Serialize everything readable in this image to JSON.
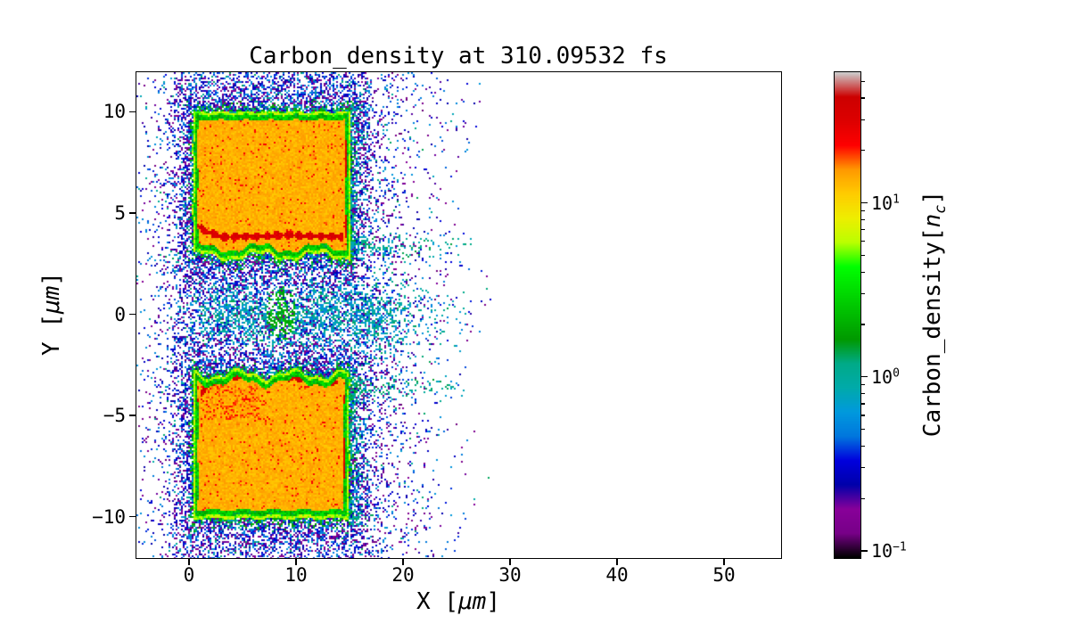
{
  "figure": {
    "title": "Carbon_density at 310.09532 fs",
    "xlabel": {
      "prefix": "X [",
      "math": "μm",
      "suffix": "]"
    },
    "ylabel": {
      "prefix": "Y [",
      "math": "μm",
      "suffix": "]"
    },
    "x_tick_labels": [
      "0",
      "10",
      "20",
      "30",
      "40",
      "50"
    ],
    "y_tick_labels": [
      "10",
      "5",
      "0",
      "−5",
      "−10"
    ],
    "colorbar": {
      "tick_labels": [
        {
          "base": "10",
          "exp": "1"
        },
        {
          "base": "10",
          "exp": "0"
        },
        {
          "base": "10",
          "exp": "−1"
        }
      ],
      "label": {
        "prefix": "Carbon_density[",
        "math": "n",
        "sub": "c",
        "suffix": "]"
      }
    }
  },
  "chart_data": {
    "type": "heatmap",
    "title": "Carbon_density at 310.09532 fs",
    "time_fs": 310.09532,
    "xlabel": "X [μm]",
    "ylabel": "Y [μm]",
    "xlim": [
      -5,
      55.25
    ],
    "ylim": [
      -12,
      12
    ],
    "x_ticks": [
      0,
      10,
      20,
      30,
      40,
      50
    ],
    "y_ticks": [
      10,
      5,
      0,
      -5,
      -10
    ],
    "grid": false,
    "colorbar": {
      "label": "Carbon_density[n_c]",
      "scale": "log",
      "vmin": 0.092,
      "vmax": 57,
      "major_ticks": [
        10,
        1,
        0.1
      ],
      "colormap": "nipy_spectral"
    },
    "colormap_stops": [
      [
        0.0,
        "#000000"
      ],
      [
        0.05,
        "#770088"
      ],
      [
        0.1,
        "#880099"
      ],
      [
        0.15,
        "#0000AA"
      ],
      [
        0.2,
        "#0000DD"
      ],
      [
        0.25,
        "#0077DD"
      ],
      [
        0.3,
        "#0099DD"
      ],
      [
        0.35,
        "#00AAAA"
      ],
      [
        0.4,
        "#00AA88"
      ],
      [
        0.45,
        "#009900"
      ],
      [
        0.5,
        "#00BB00"
      ],
      [
        0.55,
        "#00DD00"
      ],
      [
        0.6,
        "#00FF00"
      ],
      [
        0.65,
        "#BBFF00"
      ],
      [
        0.7,
        "#EEEE00"
      ],
      [
        0.75,
        "#FFCC00"
      ],
      [
        0.8,
        "#FF9900"
      ],
      [
        0.85,
        "#FF0000"
      ],
      [
        0.9,
        "#DD0000"
      ],
      [
        0.95,
        "#CC0000"
      ],
      [
        1.0,
        "#CCCCCC"
      ]
    ],
    "features": {
      "upper_slab": {
        "x": [
          0.3,
          15.0
        ],
        "y": [
          2.9,
          10.05
        ],
        "bulk_density_nc": 13,
        "filament": {
          "path": [
            [
              0.3,
              4.55
            ],
            [
              1.5,
              4.15
            ],
            [
              3,
              3.85
            ],
            [
              6,
              3.88
            ],
            [
              9,
              3.95
            ],
            [
              12,
              3.9
            ],
            [
              14.4,
              3.85
            ]
          ],
          "density_nc": 30
        },
        "right_edge_filament": {
          "x": 14.6,
          "y": [
            3.8,
            9.95
          ],
          "density_nc": 30
        },
        "left_edge_filament": {
          "x": 0.55,
          "y": [
            4.4,
            9.95
          ],
          "density_nc": 26
        }
      },
      "lower_slab": {
        "x": [
          0.35,
          14.85
        ],
        "y": [
          -10.05,
          -2.9
        ],
        "bulk_density_nc": 13,
        "filament": {
          "path": [
            [
              1.0,
              -3.9
            ],
            [
              2.2,
              -3.25
            ],
            [
              4,
              -3.05
            ],
            [
              8,
              -3.05
            ],
            [
              11,
              -3.15
            ],
            [
              13.9,
              -3.35
            ]
          ],
          "density_nc": 30
        },
        "right_edge_filament": {
          "x": 14.45,
          "y": [
            -9.4,
            -3.9
          ],
          "density_nc": 30
        },
        "left_edge_filament": {
          "x": 0.6,
          "y": [
            -5.3,
            -4.1
          ],
          "density_nc": 24
        },
        "speckle_patch": {
          "x": [
            1,
            6.5
          ],
          "y": [
            -5.2,
            -3.4
          ],
          "density_nc": 18
        }
      },
      "ambient_plasma": {
        "x_extent": [
          -5,
          27
        ],
        "y_extent": [
          -12,
          12
        ],
        "density_range_nc": [
          0.1,
          0.6
        ]
      },
      "midplane_plume": {
        "x_extent": [
          2,
          26
        ],
        "y_center": 0,
        "y_sigma": 1.3,
        "density_range_nc": [
          0.45,
          1.4
        ],
        "hotspot": {
          "x": 8.5,
          "y": 0.1,
          "r": 1.4,
          "density_nc": 2.5
        }
      },
      "side_plumes": [
        {
          "y": 3.4,
          "x_extent": [
            14.8,
            26.3
          ],
          "density_nc": 1.0
        },
        {
          "y": -3.6,
          "x_extent": [
            14.8,
            25.8
          ],
          "density_nc": 1.0
        }
      ]
    }
  }
}
